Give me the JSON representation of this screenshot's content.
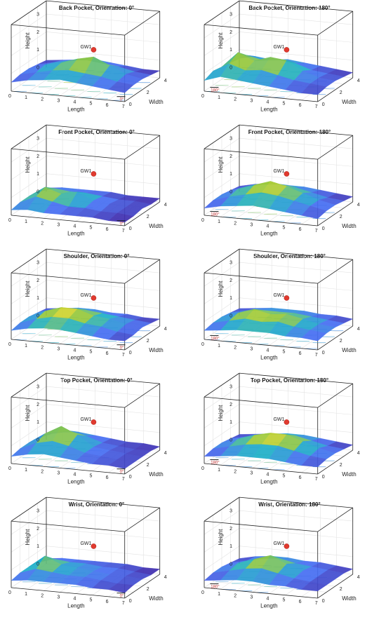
{
  "chart_data": [
    {
      "type": "surface3d",
      "title": "Back Pocket, Orientation: 0°",
      "xlabel": "Length",
      "ylabel": "Width",
      "zlabel": "Height",
      "xlim": [
        0,
        7
      ],
      "ylim": [
        0,
        4
      ],
      "zlim": [
        0,
        3
      ],
      "marker": {
        "label": "GW1",
        "x": 4,
        "y": 2,
        "z": 2
      },
      "orientation_label": "0°",
      "z": [
        [
          0.5,
          0.7,
          0.8,
          0.9,
          0.8,
          0.7,
          0.6,
          0.5
        ],
        [
          0.6,
          0.8,
          1.0,
          1.1,
          1.0,
          0.9,
          0.7,
          0.6
        ],
        [
          0.6,
          0.9,
          1.1,
          1.4,
          1.6,
          1.2,
          0.8,
          0.6
        ],
        [
          0.5,
          0.7,
          0.9,
          1.0,
          0.9,
          0.8,
          0.6,
          0.5
        ],
        [
          0.4,
          0.5,
          0.6,
          0.7,
          0.6,
          0.5,
          0.4,
          0.4
        ]
      ]
    },
    {
      "type": "surface3d",
      "title": "Back Pocket, Orientation: 180°",
      "xlabel": "Length",
      "ylabel": "Width",
      "zlabel": "Height",
      "xlim": [
        0,
        7
      ],
      "ylim": [
        0,
        4
      ],
      "zlim": [
        0,
        3
      ],
      "marker": {
        "label": "GW1",
        "x": 4,
        "y": 2,
        "z": 2
      },
      "orientation_label": "180°",
      "z": [
        [
          0.6,
          0.9,
          0.8,
          0.7,
          0.6,
          0.5,
          0.4,
          0.4
        ],
        [
          0.8,
          1.3,
          1.0,
          1.1,
          0.9,
          0.7,
          0.6,
          0.5
        ],
        [
          0.7,
          1.6,
          1.2,
          1.5,
          1.4,
          0.9,
          0.6,
          0.5
        ],
        [
          0.6,
          1.1,
          0.9,
          1.0,
          0.9,
          0.6,
          0.5,
          0.4
        ],
        [
          0.5,
          0.7,
          0.6,
          0.7,
          0.6,
          0.5,
          0.4,
          0.3
        ]
      ]
    },
    {
      "type": "surface3d",
      "title": "Front Pocket, Orientation: 0°",
      "xlabel": "Length",
      "ylabel": "Width",
      "zlabel": "Height",
      "xlim": [
        0,
        7
      ],
      "ylim": [
        0,
        4
      ],
      "zlim": [
        0,
        3
      ],
      "marker": {
        "label": "GW1",
        "x": 4,
        "y": 2,
        "z": 2
      },
      "orientation_label": "0°",
      "z": [
        [
          0.3,
          0.4,
          0.3,
          0.3,
          0.3,
          0.3,
          0.2,
          0.2
        ],
        [
          0.4,
          0.8,
          0.6,
          0.4,
          0.4,
          0.3,
          0.3,
          0.2
        ],
        [
          0.4,
          1.0,
          0.7,
          0.9,
          0.5,
          0.4,
          0.3,
          0.3
        ],
        [
          0.3,
          0.6,
          0.5,
          0.5,
          0.4,
          0.3,
          0.3,
          0.2
        ],
        [
          0.2,
          0.3,
          0.3,
          0.3,
          0.3,
          0.2,
          0.2,
          0.2
        ]
      ]
    },
    {
      "type": "surface3d",
      "title": "Front Pocket, Orientation: 180°",
      "xlabel": "Length",
      "ylabel": "Width",
      "zlabel": "Height",
      "xlim": [
        0,
        7
      ],
      "ylim": [
        0,
        4
      ],
      "zlim": [
        0,
        3
      ],
      "marker": {
        "label": "GW1",
        "x": 4,
        "y": 2,
        "z": 2
      },
      "orientation_label": "180°",
      "z": [
        [
          0.4,
          0.6,
          0.7,
          0.8,
          0.7,
          0.6,
          0.5,
          0.4
        ],
        [
          0.5,
          0.8,
          1.0,
          1.2,
          1.1,
          0.9,
          0.7,
          0.5
        ],
        [
          0.5,
          0.9,
          1.2,
          1.5,
          1.3,
          1.0,
          0.7,
          0.5
        ],
        [
          0.4,
          0.7,
          0.9,
          1.0,
          0.9,
          0.7,
          0.5,
          0.4
        ],
        [
          0.3,
          0.5,
          0.6,
          0.6,
          0.6,
          0.5,
          0.4,
          0.3
        ]
      ]
    },
    {
      "type": "surface3d",
      "title": "Shoulder, Orientation: 0°",
      "xlabel": "Length",
      "ylabel": "Width",
      "zlabel": "Height",
      "xlim": [
        0,
        7
      ],
      "ylim": [
        0,
        4
      ],
      "zlim": [
        0,
        3
      ],
      "marker": {
        "label": "GW1",
        "x": 4,
        "y": 2,
        "z": 2
      },
      "orientation_label": "0°",
      "z": [
        [
          0.5,
          0.7,
          0.8,
          0.8,
          0.7,
          0.6,
          0.5,
          0.5
        ],
        [
          0.6,
          0.9,
          1.1,
          1.1,
          0.9,
          0.8,
          0.6,
          0.5
        ],
        [
          0.6,
          1.0,
          1.3,
          1.3,
          1.0,
          0.9,
          0.7,
          0.6
        ],
        [
          0.5,
          0.8,
          0.9,
          0.9,
          0.8,
          0.7,
          0.6,
          0.5
        ],
        [
          0.4,
          0.5,
          0.6,
          0.6,
          0.5,
          0.5,
          0.4,
          0.4
        ]
      ]
    },
    {
      "type": "surface3d",
      "title": "Shoulder, Orientation: 180°",
      "xlabel": "Length",
      "ylabel": "Width",
      "zlabel": "Height",
      "xlim": [
        0,
        7
      ],
      "ylim": [
        0,
        4
      ],
      "zlim": [
        0,
        3
      ],
      "marker": {
        "label": "GW1",
        "x": 4,
        "y": 2,
        "z": 2
      },
      "orientation_label": "180°",
      "z": [
        [
          0.5,
          0.6,
          0.7,
          0.7,
          0.7,
          0.6,
          0.6,
          0.5
        ],
        [
          0.6,
          0.8,
          1.0,
          0.9,
          1.0,
          0.8,
          0.7,
          0.6
        ],
        [
          0.6,
          0.9,
          1.2,
          1.0,
          1.1,
          0.9,
          0.7,
          0.6
        ],
        [
          0.5,
          0.7,
          0.8,
          0.8,
          0.8,
          0.7,
          0.6,
          0.5
        ],
        [
          0.4,
          0.5,
          0.6,
          0.6,
          0.6,
          0.5,
          0.5,
          0.4
        ]
      ]
    },
    {
      "type": "surface3d",
      "title": "Top Pocket, Orientation: 0°",
      "xlabel": "Length",
      "ylabel": "Width",
      "zlabel": "Height",
      "xlim": [
        0,
        7
      ],
      "ylim": [
        0,
        4
      ],
      "zlim": [
        0,
        3
      ],
      "marker": {
        "label": "GW1",
        "x": 4,
        "y": 2,
        "z": 2
      },
      "orientation_label": "0°",
      "z": [
        [
          0.4,
          0.6,
          0.7,
          0.6,
          0.5,
          0.4,
          0.4,
          0.3
        ],
        [
          0.5,
          0.9,
          1.1,
          0.9,
          0.6,
          0.5,
          0.4,
          0.3
        ],
        [
          0.5,
          1.1,
          1.6,
          1.2,
          0.6,
          0.5,
          0.4,
          0.3
        ],
        [
          0.4,
          0.8,
          1.0,
          0.8,
          0.5,
          0.4,
          0.3,
          0.3
        ],
        [
          0.3,
          0.5,
          0.6,
          0.5,
          0.4,
          0.3,
          0.3,
          0.2
        ]
      ]
    },
    {
      "type": "surface3d",
      "title": "Top Pocket, Orientation: 180°",
      "xlabel": "Length",
      "ylabel": "Width",
      "zlabel": "Height",
      "xlim": [
        0,
        7
      ],
      "ylim": [
        0,
        4
      ],
      "zlim": [
        0,
        3
      ],
      "marker": {
        "label": "GW1",
        "x": 4,
        "y": 2,
        "z": 2
      },
      "orientation_label": "180°",
      "z": [
        [
          0.4,
          0.5,
          0.6,
          0.6,
          0.6,
          0.5,
          0.4,
          0.4
        ],
        [
          0.5,
          0.7,
          0.9,
          1.0,
          1.0,
          0.8,
          0.6,
          0.5
        ],
        [
          0.5,
          0.8,
          1.1,
          1.3,
          1.3,
          1.0,
          0.7,
          0.5
        ],
        [
          0.4,
          0.6,
          0.8,
          0.9,
          0.9,
          0.7,
          0.5,
          0.4
        ],
        [
          0.3,
          0.4,
          0.5,
          0.6,
          0.6,
          0.5,
          0.4,
          0.3
        ]
      ]
    },
    {
      "type": "surface3d",
      "title": "Wrist, Orientation: 0°",
      "xlabel": "Length",
      "ylabel": "Width",
      "zlabel": "Height",
      "xlim": [
        0,
        7
      ],
      "ylim": [
        0,
        4
      ],
      "zlim": [
        0,
        3
      ],
      "marker": {
        "label": "GW1",
        "x": 4,
        "y": 2,
        "z": 2
      },
      "orientation_label": "0°",
      "z": [
        [
          0.4,
          0.5,
          0.5,
          0.5,
          0.5,
          0.4,
          0.4,
          0.3
        ],
        [
          0.5,
          0.8,
          0.7,
          0.6,
          0.6,
          0.5,
          0.4,
          0.4
        ],
        [
          0.5,
          1.2,
          0.8,
          0.7,
          0.6,
          0.5,
          0.5,
          0.4
        ],
        [
          0.4,
          0.7,
          0.6,
          0.6,
          0.5,
          0.5,
          0.4,
          0.3
        ],
        [
          0.3,
          0.4,
          0.4,
          0.4,
          0.4,
          0.4,
          0.3,
          0.3
        ]
      ]
    },
    {
      "type": "surface3d",
      "title": "Wrist, Orientation: 180°",
      "xlabel": "Length",
      "ylabel": "Width",
      "zlabel": "Height",
      "xlim": [
        0,
        7
      ],
      "ylim": [
        0,
        4
      ],
      "zlim": [
        0,
        3
      ],
      "marker": {
        "label": "GW1",
        "x": 4,
        "y": 2,
        "z": 2
      },
      "orientation_label": "180°",
      "z": [
        [
          0.4,
          0.5,
          0.6,
          0.6,
          0.5,
          0.5,
          0.4,
          0.4
        ],
        [
          0.5,
          0.7,
          0.9,
          1.0,
          0.8,
          0.6,
          0.5,
          0.4
        ],
        [
          0.5,
          0.8,
          1.1,
          1.4,
          1.0,
          0.7,
          0.5,
          0.4
        ],
        [
          0.4,
          0.6,
          0.8,
          0.9,
          0.7,
          0.6,
          0.5,
          0.4
        ],
        [
          0.3,
          0.5,
          0.6,
          0.6,
          0.5,
          0.5,
          0.4,
          0.3
        ]
      ]
    }
  ]
}
